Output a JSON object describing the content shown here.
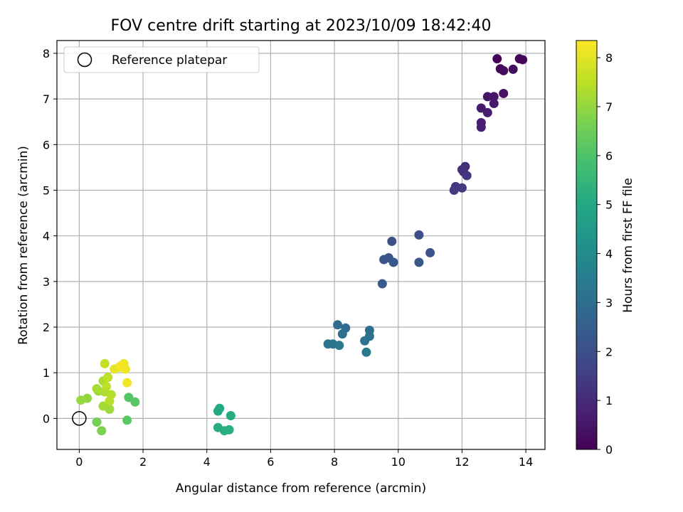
{
  "chart_data": {
    "type": "scatter",
    "title": "FOV centre drift starting at 2023/10/09 18:42:40",
    "xlabel": "Angular distance from reference (arcmin)",
    "ylabel": "Rotation from reference (arcmin)",
    "xlim": [
      -0.7,
      14.6
    ],
    "ylim": [
      -0.68,
      8.28
    ],
    "xticks": [
      0,
      2,
      4,
      6,
      8,
      10,
      12,
      14
    ],
    "yticks": [
      0,
      1,
      2,
      3,
      4,
      5,
      6,
      7,
      8
    ],
    "grid": true,
    "legend": {
      "position": "upper-left",
      "entries": [
        "Reference platepar"
      ]
    },
    "reference_point": {
      "x": 0,
      "y": 0,
      "label": "Reference platepar"
    },
    "colorbar": {
      "label": "Hours from first FF file",
      "colormap": "viridis",
      "range": [
        0,
        8.35
      ],
      "ticks": [
        0,
        1,
        2,
        3,
        4,
        5,
        6,
        7,
        8
      ]
    },
    "points": [
      {
        "x": 13.1,
        "y": 7.88,
        "c": 0.05
      },
      {
        "x": 13.8,
        "y": 7.88,
        "c": 0.1
      },
      {
        "x": 13.9,
        "y": 7.86,
        "c": 0.15
      },
      {
        "x": 13.2,
        "y": 7.66,
        "c": 0.2
      },
      {
        "x": 13.3,
        "y": 7.62,
        "c": 0.25
      },
      {
        "x": 13.6,
        "y": 7.65,
        "c": 0.3
      },
      {
        "x": 13.3,
        "y": 7.12,
        "c": 0.4
      },
      {
        "x": 12.8,
        "y": 7.05,
        "c": 0.45
      },
      {
        "x": 13.0,
        "y": 7.05,
        "c": 0.5
      },
      {
        "x": 13.0,
        "y": 6.9,
        "c": 0.55
      },
      {
        "x": 12.6,
        "y": 6.8,
        "c": 0.6
      },
      {
        "x": 12.8,
        "y": 6.7,
        "c": 0.65
      },
      {
        "x": 12.6,
        "y": 6.48,
        "c": 0.7
      },
      {
        "x": 12.6,
        "y": 6.38,
        "c": 0.75
      },
      {
        "x": 12.1,
        "y": 5.52,
        "c": 1.1
      },
      {
        "x": 12.0,
        "y": 5.45,
        "c": 1.15
      },
      {
        "x": 12.05,
        "y": 5.4,
        "c": 1.2
      },
      {
        "x": 12.15,
        "y": 5.32,
        "c": 1.25
      },
      {
        "x": 11.8,
        "y": 5.08,
        "c": 1.3
      },
      {
        "x": 12.0,
        "y": 5.05,
        "c": 1.35
      },
      {
        "x": 11.75,
        "y": 5.0,
        "c": 1.4
      },
      {
        "x": 10.65,
        "y": 4.02,
        "c": 2.0
      },
      {
        "x": 9.8,
        "y": 3.88,
        "c": 2.05
      },
      {
        "x": 11.0,
        "y": 3.63,
        "c": 2.1
      },
      {
        "x": 9.7,
        "y": 3.52,
        "c": 2.15
      },
      {
        "x": 9.55,
        "y": 3.48,
        "c": 2.2
      },
      {
        "x": 9.85,
        "y": 3.42,
        "c": 2.25
      },
      {
        "x": 10.65,
        "y": 3.42,
        "c": 2.3
      },
      {
        "x": 9.5,
        "y": 2.95,
        "c": 2.35
      },
      {
        "x": 8.1,
        "y": 2.05,
        "c": 2.9
      },
      {
        "x": 8.35,
        "y": 1.98,
        "c": 2.95
      },
      {
        "x": 9.1,
        "y": 1.93,
        "c": 3.0
      },
      {
        "x": 8.25,
        "y": 1.85,
        "c": 3.05
      },
      {
        "x": 9.1,
        "y": 1.8,
        "c": 3.1
      },
      {
        "x": 8.95,
        "y": 1.7,
        "c": 3.15
      },
      {
        "x": 7.8,
        "y": 1.63,
        "c": 3.2
      },
      {
        "x": 7.95,
        "y": 1.63,
        "c": 3.25
      },
      {
        "x": 8.15,
        "y": 1.6,
        "c": 3.3
      },
      {
        "x": 9.0,
        "y": 1.45,
        "c": 3.35
      },
      {
        "x": 4.4,
        "y": 0.22,
        "c": 5.0
      },
      {
        "x": 4.35,
        "y": 0.16,
        "c": 5.05
      },
      {
        "x": 4.75,
        "y": 0.06,
        "c": 5.1
      },
      {
        "x": 4.35,
        "y": -0.2,
        "c": 5.15
      },
      {
        "x": 4.55,
        "y": -0.27,
        "c": 5.2
      },
      {
        "x": 4.7,
        "y": -0.25,
        "c": 5.25
      },
      {
        "x": 1.55,
        "y": 0.46,
        "c": 6.1
      },
      {
        "x": 1.75,
        "y": 0.36,
        "c": 6.15
      },
      {
        "x": 1.5,
        "y": -0.04,
        "c": 6.2
      },
      {
        "x": 0.55,
        "y": -0.08,
        "c": 6.6
      },
      {
        "x": 0.7,
        "y": -0.27,
        "c": 6.7
      },
      {
        "x": 0.25,
        "y": 0.44,
        "c": 7.0
      },
      {
        "x": 0.05,
        "y": 0.4,
        "c": 7.05
      },
      {
        "x": 0.6,
        "y": 0.6,
        "c": 7.1
      },
      {
        "x": 0.95,
        "y": 0.2,
        "c": 7.15
      },
      {
        "x": 0.75,
        "y": 0.27,
        "c": 7.2
      },
      {
        "x": 0.55,
        "y": 0.65,
        "c": 7.25
      },
      {
        "x": 0.75,
        "y": 0.82,
        "c": 7.3
      },
      {
        "x": 0.8,
        "y": 0.58,
        "c": 7.35
      },
      {
        "x": 1.0,
        "y": 0.52,
        "c": 7.4
      },
      {
        "x": 0.95,
        "y": 0.38,
        "c": 7.45
      },
      {
        "x": 0.85,
        "y": 0.7,
        "c": 7.5
      },
      {
        "x": 0.9,
        "y": 0.9,
        "c": 7.55
      },
      {
        "x": 0.8,
        "y": 1.2,
        "c": 7.6
      },
      {
        "x": 1.1,
        "y": 1.08,
        "c": 8.0
      },
      {
        "x": 1.25,
        "y": 1.12,
        "c": 8.05
      },
      {
        "x": 1.4,
        "y": 1.2,
        "c": 8.1
      },
      {
        "x": 1.45,
        "y": 1.08,
        "c": 8.15
      },
      {
        "x": 1.5,
        "y": 0.78,
        "c": 8.2
      },
      {
        "x": 1.3,
        "y": 1.15,
        "c": 8.25
      }
    ]
  }
}
